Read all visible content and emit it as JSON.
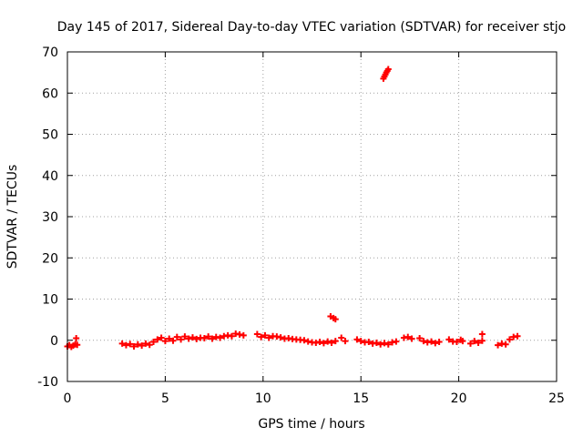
{
  "chart_data": {
    "type": "scatter",
    "title": "Day 145 of 2017, Sidereal Day-to-day VTEC variation (SDTVAR) for receiver stjo",
    "xlabel": "GPS time / hours",
    "ylabel": "SDTVAR / TECUs",
    "xlim": [
      0,
      25
    ],
    "ylim": [
      -10,
      70
    ],
    "x_ticks": [
      0,
      5,
      10,
      15,
      20,
      25
    ],
    "y_ticks": [
      -10,
      0,
      10,
      20,
      30,
      40,
      50,
      60,
      70
    ],
    "grid": true,
    "legend": "none",
    "marker": "plus",
    "series": [
      {
        "color": "#ff0000",
        "points": [
          [
            0.0,
            -1.5
          ],
          [
            0.1,
            -1.2
          ],
          [
            0.2,
            -1.6
          ],
          [
            0.3,
            -1.3
          ],
          [
            0.4,
            -1.0
          ],
          [
            0.45,
            0.5
          ],
          [
            0.5,
            -1.1
          ],
          [
            2.8,
            -0.8
          ],
          [
            3.0,
            -1.2
          ],
          [
            3.2,
            -0.9
          ],
          [
            3.4,
            -1.5
          ],
          [
            3.6,
            -1.0
          ],
          [
            3.8,
            -1.3
          ],
          [
            4.0,
            -0.8
          ],
          [
            4.2,
            -1.1
          ],
          [
            4.4,
            -0.4
          ],
          [
            4.6,
            0.2
          ],
          [
            4.8,
            0.6
          ],
          [
            5.0,
            -0.2
          ],
          [
            5.2,
            0.4
          ],
          [
            5.4,
            -0.1
          ],
          [
            5.6,
            0.8
          ],
          [
            5.8,
            0.2
          ],
          [
            6.0,
            0.9
          ],
          [
            6.2,
            0.4
          ],
          [
            6.4,
            0.7
          ],
          [
            6.6,
            0.3
          ],
          [
            6.8,
            0.6
          ],
          [
            7.0,
            0.5
          ],
          [
            7.2,
            0.9
          ],
          [
            7.4,
            0.4
          ],
          [
            7.6,
            0.8
          ],
          [
            7.8,
            0.6
          ],
          [
            8.0,
            1.0
          ],
          [
            8.2,
            1.2
          ],
          [
            8.4,
            1.0
          ],
          [
            8.6,
            1.6
          ],
          [
            8.8,
            1.4
          ],
          [
            9.0,
            1.2
          ],
          [
            9.7,
            1.5
          ],
          [
            9.9,
            0.8
          ],
          [
            10.1,
            1.2
          ],
          [
            10.3,
            0.6
          ],
          [
            10.5,
            1.0
          ],
          [
            10.7,
            0.9
          ],
          [
            10.9,
            0.7
          ],
          [
            11.1,
            0.4
          ],
          [
            11.3,
            0.5
          ],
          [
            11.5,
            0.3
          ],
          [
            11.7,
            0.2
          ],
          [
            11.9,
            0.1
          ],
          [
            12.1,
            0.0
          ],
          [
            12.3,
            -0.3
          ],
          [
            12.5,
            -0.5
          ],
          [
            12.7,
            -0.6
          ],
          [
            12.9,
            -0.4
          ],
          [
            13.1,
            -0.7
          ],
          [
            13.3,
            -0.3
          ],
          [
            13.5,
            -0.6
          ],
          [
            13.7,
            -0.2
          ],
          [
            13.45,
            5.8
          ],
          [
            13.6,
            5.4
          ],
          [
            13.7,
            5.1
          ],
          [
            14.0,
            0.6
          ],
          [
            14.2,
            -0.2
          ],
          [
            14.8,
            0.2
          ],
          [
            15.0,
            -0.2
          ],
          [
            15.2,
            -0.5
          ],
          [
            15.4,
            -0.4
          ],
          [
            15.6,
            -0.8
          ],
          [
            15.8,
            -0.6
          ],
          [
            16.0,
            -1.0
          ],
          [
            16.2,
            -0.7
          ],
          [
            16.4,
            -1.0
          ],
          [
            16.6,
            -0.5
          ],
          [
            16.8,
            -0.3
          ],
          [
            16.15,
            63.5
          ],
          [
            16.2,
            64.0
          ],
          [
            16.25,
            64.5
          ],
          [
            16.3,
            65.0
          ],
          [
            16.35,
            65.4
          ],
          [
            16.4,
            65.8
          ],
          [
            17.2,
            0.6
          ],
          [
            17.4,
            0.8
          ],
          [
            17.6,
            0.4
          ],
          [
            18.0,
            0.5
          ],
          [
            18.2,
            -0.2
          ],
          [
            18.4,
            -0.5
          ],
          [
            18.6,
            -0.3
          ],
          [
            18.8,
            -0.7
          ],
          [
            19.0,
            -0.4
          ],
          [
            19.5,
            0.2
          ],
          [
            19.7,
            -0.3
          ],
          [
            19.9,
            -0.4
          ],
          [
            20.1,
            0.1
          ],
          [
            20.2,
            -0.2
          ],
          [
            20.6,
            -0.8
          ],
          [
            20.8,
            -0.2
          ],
          [
            21.0,
            -0.6
          ],
          [
            21.2,
            -0.1
          ],
          [
            21.2,
            1.5
          ],
          [
            22.0,
            -1.2
          ],
          [
            22.2,
            -0.8
          ],
          [
            22.4,
            -1.0
          ],
          [
            22.6,
            0.2
          ],
          [
            22.8,
            0.8
          ],
          [
            23.0,
            1.0
          ]
        ]
      }
    ]
  }
}
